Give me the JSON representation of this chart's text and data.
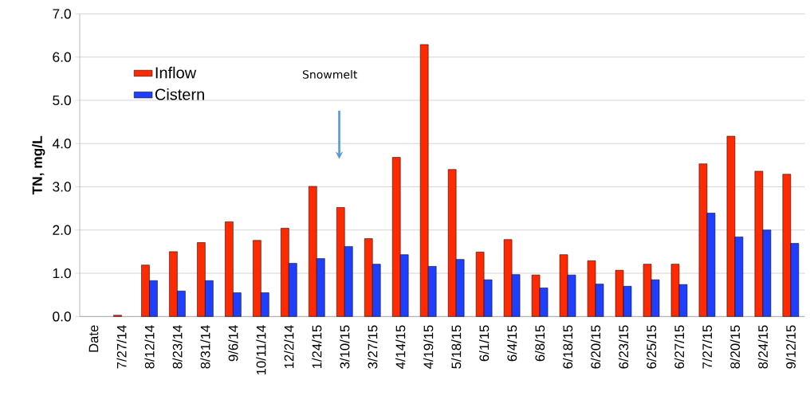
{
  "chart_data": {
    "type": "bar",
    "ylabel": "TN, mg/L",
    "categories": [
      "Date",
      "7/27/14",
      "8/12/14",
      "8/23/14",
      "8/31/14",
      "9/6/14",
      "10/11/14",
      "12/2/14",
      "1/24/15",
      "3/10/15",
      "3/27/15",
      "4/14/15",
      "4/19/15",
      "5/18/15",
      "6/1/15",
      "6/4/15",
      "6/8/15",
      "6/18/15",
      "6/20/15",
      "6/23/15",
      "6/25/15",
      "6/27/15",
      "7/27/15",
      "8/20/15",
      "8/24/15",
      "9/12/15"
    ],
    "series": [
      {
        "name": "Inflow",
        "color": "#ff2a00",
        "values": [
          null,
          0.03,
          1.19,
          1.5,
          1.71,
          2.19,
          1.76,
          2.04,
          3.01,
          2.52,
          1.8,
          3.68,
          6.29,
          3.4,
          1.49,
          1.78,
          0.96,
          1.43,
          1.29,
          1.07,
          1.21,
          1.21,
          3.53,
          4.17,
          3.36,
          3.29
        ]
      },
      {
        "name": "Cistern",
        "color": "#1f3fff",
        "values": [
          null,
          null,
          0.83,
          0.59,
          0.83,
          0.55,
          0.55,
          1.23,
          1.34,
          1.62,
          1.21,
          1.43,
          1.16,
          1.32,
          0.85,
          0.97,
          0.66,
          0.96,
          0.75,
          0.7,
          0.85,
          0.74,
          2.39,
          1.84,
          2.0,
          1.69
        ]
      }
    ],
    "ylim": [
      0,
      7
    ],
    "yticks": [
      {
        "value": 0,
        "label": "0.0"
      },
      {
        "value": 1,
        "label": "1.0"
      },
      {
        "value": 2,
        "label": "2.0"
      },
      {
        "value": 3,
        "label": "3.0"
      },
      {
        "value": 4,
        "label": "4.0"
      },
      {
        "value": 5,
        "label": "5.0"
      },
      {
        "value": 6,
        "label": "6.0"
      },
      {
        "value": 7,
        "label": "7.0"
      }
    ],
    "grid": "y",
    "legend": "top left",
    "annotations": [
      "Snowmelt"
    ]
  }
}
